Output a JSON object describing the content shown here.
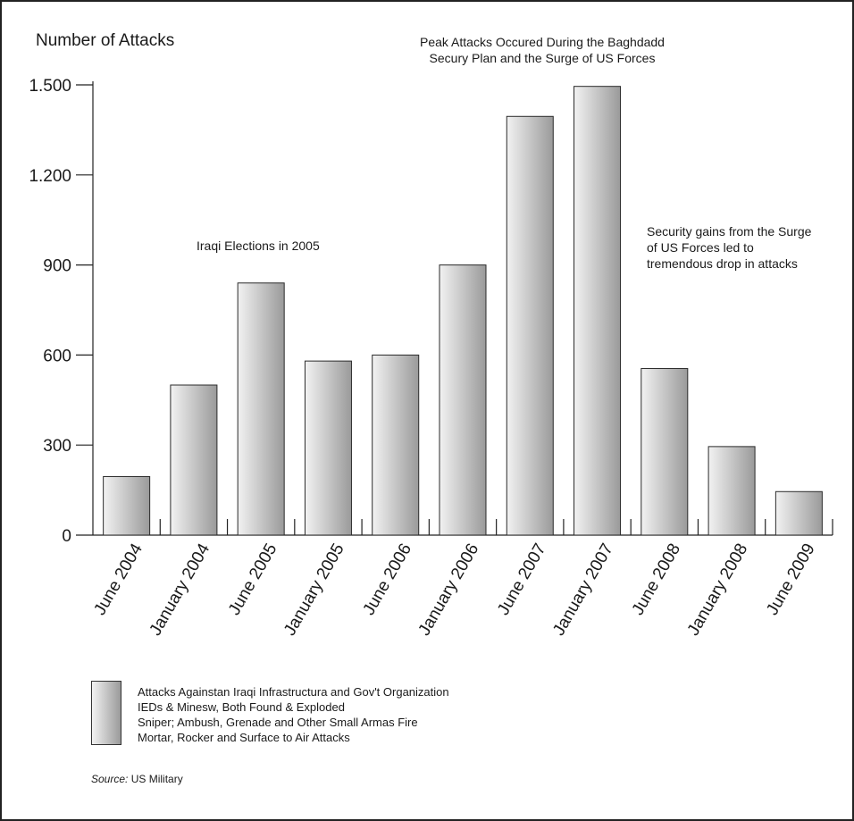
{
  "chart_data": {
    "type": "bar",
    "title": "Number of Attacks",
    "categories": [
      "June 2004",
      "January 2004",
      "June 2005",
      "January 2005",
      "June 2006",
      "January 2006",
      "June 2007",
      "January 2007",
      "June 2008",
      "January 2008",
      "June 2009"
    ],
    "values": [
      195,
      500,
      840,
      580,
      600,
      900,
      1395,
      1495,
      555,
      295,
      145
    ],
    "y_ticks": [
      0,
      300,
      600,
      900,
      1200,
      1500
    ],
    "y_tick_labels": [
      "0",
      "300",
      "600",
      "900",
      "1.200",
      "1.500"
    ],
    "ylim": [
      0,
      1500
    ],
    "grid": false,
    "bar_fill": [
      "#f2f2f2",
      "#9a9a9a"
    ],
    "annotations": [
      "Peak Attacks Occured During the Baghdadd Secury Plan and the Surge of US Forces",
      "Iraqi Elections in 2005",
      "Security gains from the Surge of US Forces led to tremendous drop in attacks"
    ]
  },
  "annotations": {
    "peak_line1": "Peak Attacks Occured During the Baghdadd",
    "peak_line2": "Secury Plan and the Surge of US Forces",
    "elections": "Iraqi Elections in 2005",
    "gains_line1": "Security gains from the Surge",
    "gains_line2": "of US Forces led to",
    "gains_line3": "tremendous drop in attacks"
  },
  "legend": {
    "items": [
      "Attacks Againstan Iraqi Infrastructura and Gov't Organization",
      "IEDs & Minesw, Both Found & Exploded",
      "Sniper; Ambush, Grenade and Other Small Armas Fire",
      "Mortar, Rocker and Surface to Air Attacks"
    ]
  },
  "source": {
    "label": "Source:",
    "text": "US Military"
  }
}
